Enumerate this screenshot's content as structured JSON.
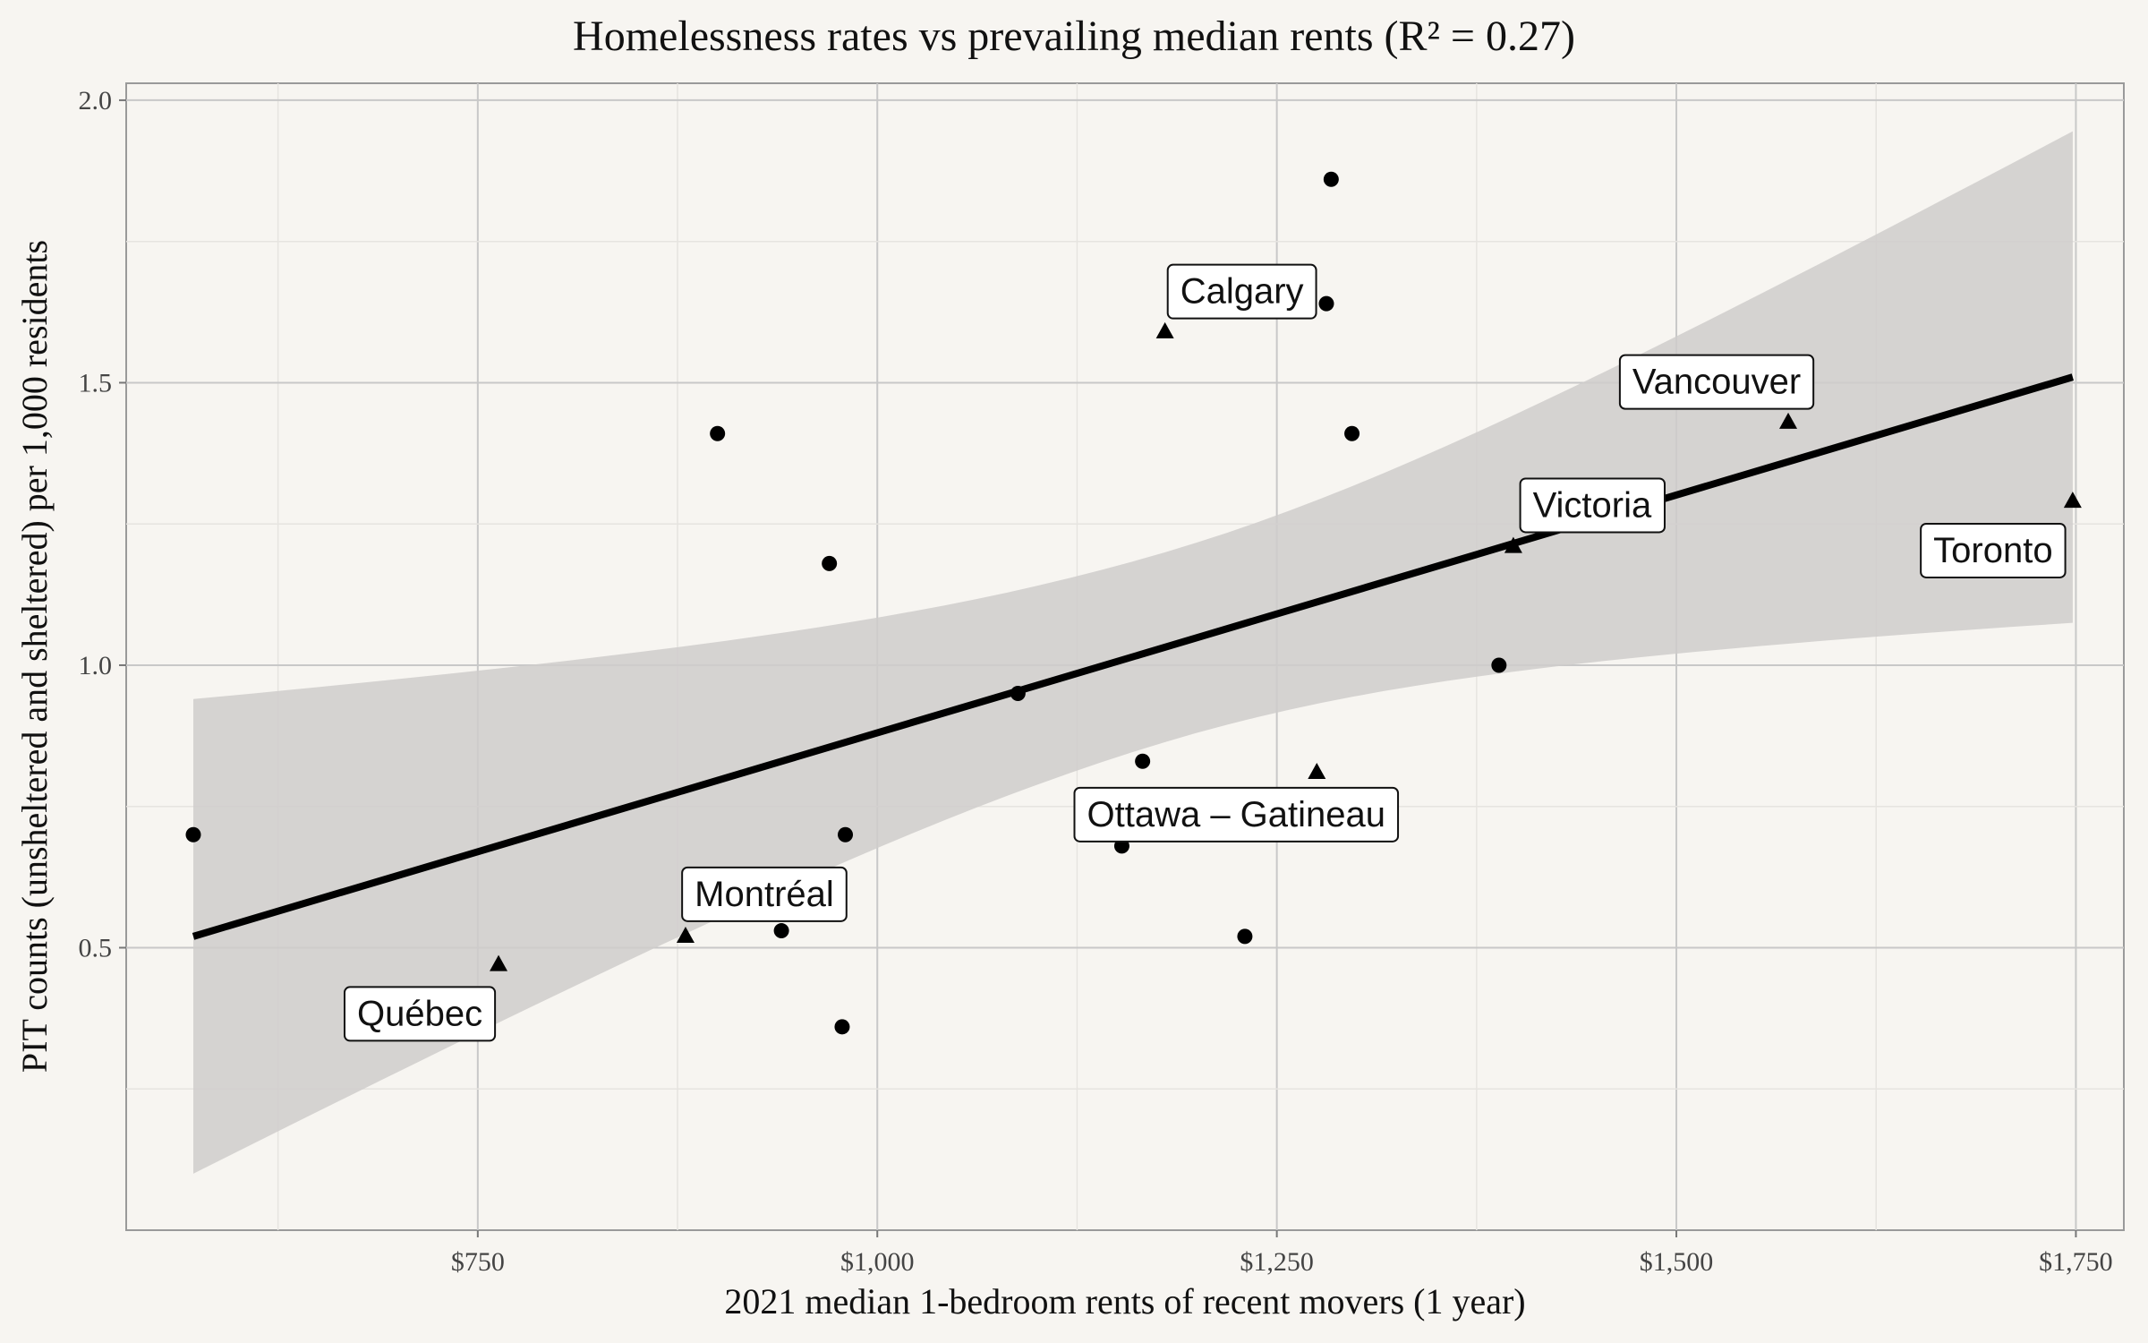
{
  "chart_data": {
    "type": "scatter",
    "title": "Homelessness rates vs prevailing median rents (R² = 0.27)",
    "xlabel": "2021 median 1-bedroom rents of recent movers (1 year)",
    "ylabel": "PIT counts (unsheltered and sheltered) per 1,000 residents",
    "xlim": [
      530,
      1780
    ],
    "ylim": [
      0.0,
      2.03
    ],
    "x_ticks": [
      750,
      1000,
      1250,
      1500,
      1750
    ],
    "x_tick_labels": [
      "$750",
      "$1,000",
      "$1,250",
      "$1,500",
      "$1,750"
    ],
    "y_ticks": [
      0.5,
      1.0,
      1.5,
      2.0
    ],
    "y_tick_labels": [
      "0.5",
      "1.0",
      "1.5",
      "2.0"
    ],
    "grid": true,
    "legend": "none",
    "fit": {
      "type": "linear",
      "x": [
        572,
        1748
      ],
      "y": [
        0.52,
        1.51
      ],
      "ci_lower": [
        0.1,
        1.08
      ],
      "ci_upper": [
        0.94,
        1.95
      ]
    },
    "series": [
      {
        "shape": "circle",
        "points": [
          {
            "x": 572,
            "y": 0.7
          },
          {
            "x": 900,
            "y": 1.41
          },
          {
            "x": 940,
            "y": 0.53
          },
          {
            "x": 970,
            "y": 1.18
          },
          {
            "x": 978,
            "y": 0.36
          },
          {
            "x": 980,
            "y": 0.7
          },
          {
            "x": 1088,
            "y": 0.95
          },
          {
            "x": 1153,
            "y": 0.68
          },
          {
            "x": 1166,
            "y": 0.83
          },
          {
            "x": 1230,
            "y": 0.52
          },
          {
            "x": 1281,
            "y": 1.64
          },
          {
            "x": 1284,
            "y": 1.86
          },
          {
            "x": 1297,
            "y": 1.41
          },
          {
            "x": 1389,
            "y": 1.0
          }
        ]
      },
      {
        "shape": "triangle",
        "points": [
          {
            "x": 763,
            "y": 0.47,
            "label": "Québec"
          },
          {
            "x": 880,
            "y": 0.52,
            "label": "Montréal"
          },
          {
            "x": 1180,
            "y": 1.59,
            "label": "Calgary"
          },
          {
            "x": 1275,
            "y": 0.81,
            "label": "Ottawa – Gatineau"
          },
          {
            "x": 1398,
            "y": 1.21,
            "label": "Victoria"
          },
          {
            "x": 1570,
            "y": 1.43,
            "label": "Vancouver"
          },
          {
            "x": 1748,
            "y": 1.29,
            "label": "Toronto"
          }
        ]
      }
    ]
  },
  "colors": {
    "background": "#f7f5f1",
    "ribbon": "#cfcccb",
    "line": "#000000",
    "points": "#000000"
  }
}
